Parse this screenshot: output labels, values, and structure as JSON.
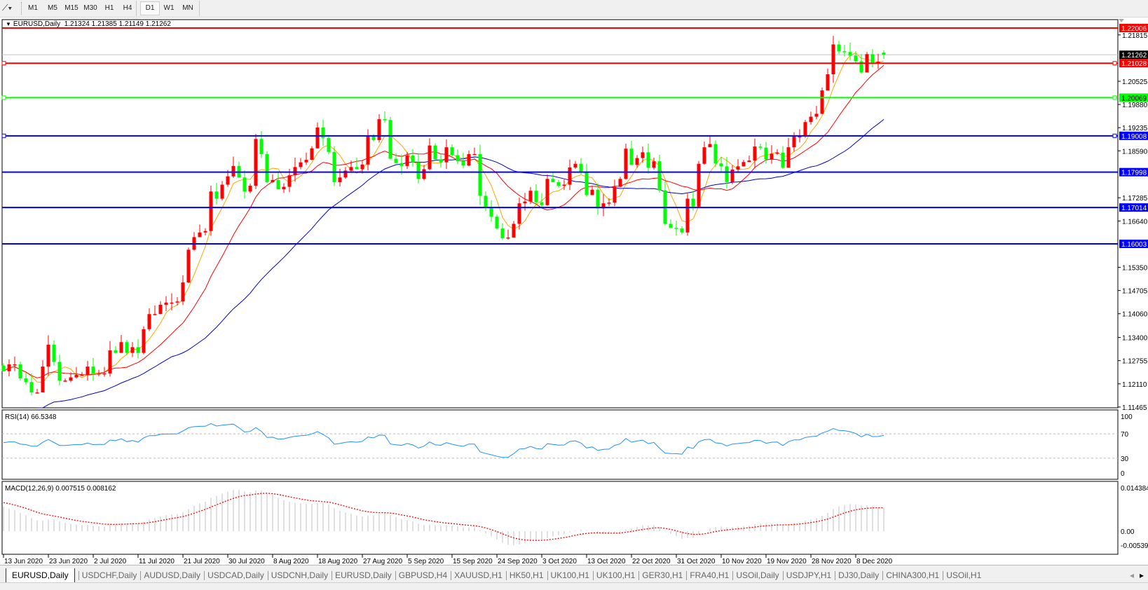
{
  "toolbar": {
    "drawing_tool_icon": "line-tool-icon",
    "timeframes": [
      "M1",
      "M5",
      "M15",
      "M30",
      "H1",
      "H4",
      "D1",
      "W1",
      "MN"
    ],
    "active_timeframe": "D1"
  },
  "chart": {
    "symbol_label": "EURUSD,Daily",
    "ohlc_label": "1.21324 1.21385 1.21149 1.21262",
    "price_ticks": [
      "1.21815",
      "1.20525",
      "1.19880",
      "1.19235",
      "1.18590",
      "1.17285",
      "1.16640",
      "1.15350",
      "1.14705",
      "1.14060",
      "1.13400",
      "1.12755",
      "1.12110",
      "1.11465"
    ],
    "bid_label": "1.21262",
    "levels": [
      {
        "label": "1.22006",
        "price": 1.22006,
        "color": "#FF0000"
      },
      {
        "label": "1.21028",
        "price": 1.21028,
        "color": "#FF0000"
      },
      {
        "label": "1.20069",
        "price": 1.20069,
        "color": "#00FF00"
      },
      {
        "label": "1.19008",
        "price": 1.19008,
        "color": "#0000FF"
      },
      {
        "label": "1.17998",
        "price": 1.17998,
        "color": "#0000FF"
      },
      {
        "label": "1.17014",
        "price": 1.17014,
        "color": "#0000FF"
      },
      {
        "label": "1.16003",
        "price": 1.16003,
        "color": "#0000FF"
      }
    ]
  },
  "rsi": {
    "label": "RSI(14) 66.5348",
    "ticks": [
      "100",
      "70",
      "30",
      "0"
    ]
  },
  "macd": {
    "label": "MACD(12,26,9) 0.007515 0.008162",
    "ticks": [
      "0.014384",
      "0.00",
      "-0.005396"
    ]
  },
  "dates": [
    "13 Jun 2020",
    "23 Jun 2020",
    "2 Jul 2020",
    "11 Jul 2020",
    "21 Jul 2020",
    "30 Jul 2020",
    "8 Aug 2020",
    "18 Aug 2020",
    "27 Aug 2020",
    "5 Sep 2020",
    "15 Sep 2020",
    "24 Sep 2020",
    "3 Oct 2020",
    "13 Oct 2020",
    "22 Oct 2020",
    "31 Oct 2020",
    "10 Nov 2020",
    "19 Nov 2020",
    "28 Nov 2020",
    "8 Dec 2020"
  ],
  "tabs": [
    "EURUSD,Daily",
    "USDCHF,Daily",
    "AUDUSD,Daily",
    "USDCAD,Daily",
    "USDCNH,Daily",
    "EURUSD,Daily",
    "GBPUSD,H4",
    "XAUUSD,H1",
    "HK50,H1",
    "UK100,H1",
    "UK100,H1",
    "GER30,H1",
    "FRA40,H1",
    "USOil,Daily",
    "USDJPY,H1",
    "DJ30,Daily",
    "CHINA300,H1",
    "USOil,H1"
  ],
  "active_tab": 0,
  "chart_data": {
    "type": "candlestick",
    "symbol": "EURUSD",
    "timeframe": "Daily",
    "ylim": [
      1.11443,
      1.2224
    ],
    "last_bar": {
      "open": 1.21324,
      "high": 1.21385,
      "low": 1.21149,
      "close": 1.21262
    },
    "closes": [
      1.1246,
      1.1265,
      1.1265,
      1.1226,
      1.1216,
      1.1187,
      1.1187,
      1.1259,
      1.132,
      1.1272,
      1.122,
      1.122,
      1.1229,
      1.1236,
      1.1236,
      1.1259,
      1.1239,
      1.124,
      1.124,
      1.1304,
      1.1297,
      1.1327,
      1.1297,
      1.1313,
      1.1297,
      1.1363,
      1.1405,
      1.1405,
      1.1431,
      1.1437,
      1.1437,
      1.144,
      1.1493,
      1.1584,
      1.1619,
      1.1632,
      1.1636,
      1.1746,
      1.1726,
      1.1765,
      1.1788,
      1.1817,
      1.1785,
      1.1746,
      1.1762,
      1.1892,
      1.185,
      1.1772,
      1.1778,
      1.1752,
      1.1759,
      1.1791,
      1.1814,
      1.1827,
      1.1834,
      1.1866,
      1.1924,
      1.1895,
      1.1856,
      1.1772,
      1.1785,
      1.1804,
      1.1814,
      1.1808,
      1.1821,
      1.1899,
      1.1889,
      1.1947,
      1.1945,
      1.1837,
      1.1825,
      1.1817,
      1.1846,
      1.1827,
      1.1781,
      1.1808,
      1.1874,
      1.1835,
      1.1827,
      1.1869,
      1.1847,
      1.183,
      1.1818,
      1.185,
      1.185,
      1.1734,
      1.1702,
      1.1676,
      1.1643,
      1.1616,
      1.1618,
      1.1656,
      1.1713,
      1.1718,
      1.1748,
      1.1716,
      1.1708,
      1.1781,
      1.1772,
      1.1762,
      1.1765,
      1.1813,
      1.1823,
      1.1799,
      1.1736,
      1.1751,
      1.1699,
      1.1713,
      1.1715,
      1.1759,
      1.1781,
      1.1865,
      1.182,
      1.1839,
      1.1855,
      1.1812,
      1.183,
      1.1749,
      1.1656,
      1.1645,
      1.1643,
      1.1632,
      1.1726,
      1.1704,
      1.1823,
      1.1869,
      1.1878,
      1.1824,
      1.1816,
      1.1772,
      1.1807,
      1.1816,
      1.1828,
      1.1832,
      1.1871,
      1.1868,
      1.1835,
      1.1851,
      1.1854,
      1.1812,
      1.1869,
      1.1899,
      1.1899,
      1.1939,
      1.1954,
      1.1962,
      1.2027,
      1.2072,
      1.2155,
      1.2136,
      1.2134,
      1.2124,
      1.2108,
      1.2077,
      1.2128,
      1.2105,
      1.2107,
      1.21262
    ],
    "colors": {
      "bull": "#FF0000",
      "bear": "#00FF00",
      "ma_fast": "#FFA500",
      "ma_mid": "#FF0000",
      "ma_slow": "#0000CD",
      "rsi": "#1E90FF",
      "macd_hist": "#C0C0C0",
      "macd_signal": "#FF0000",
      "bid_line": "#C0C0C0"
    },
    "rsi": {
      "period": 14,
      "value": 66.5348,
      "levels": [
        30,
        70
      ],
      "ylim": [
        0,
        100
      ]
    },
    "macd": {
      "fast": 12,
      "slow": 26,
      "signal": 9,
      "main": 0.007515,
      "signal_value": 0.008162,
      "ylim": [
        -0.005396,
        0.014384
      ]
    }
  }
}
